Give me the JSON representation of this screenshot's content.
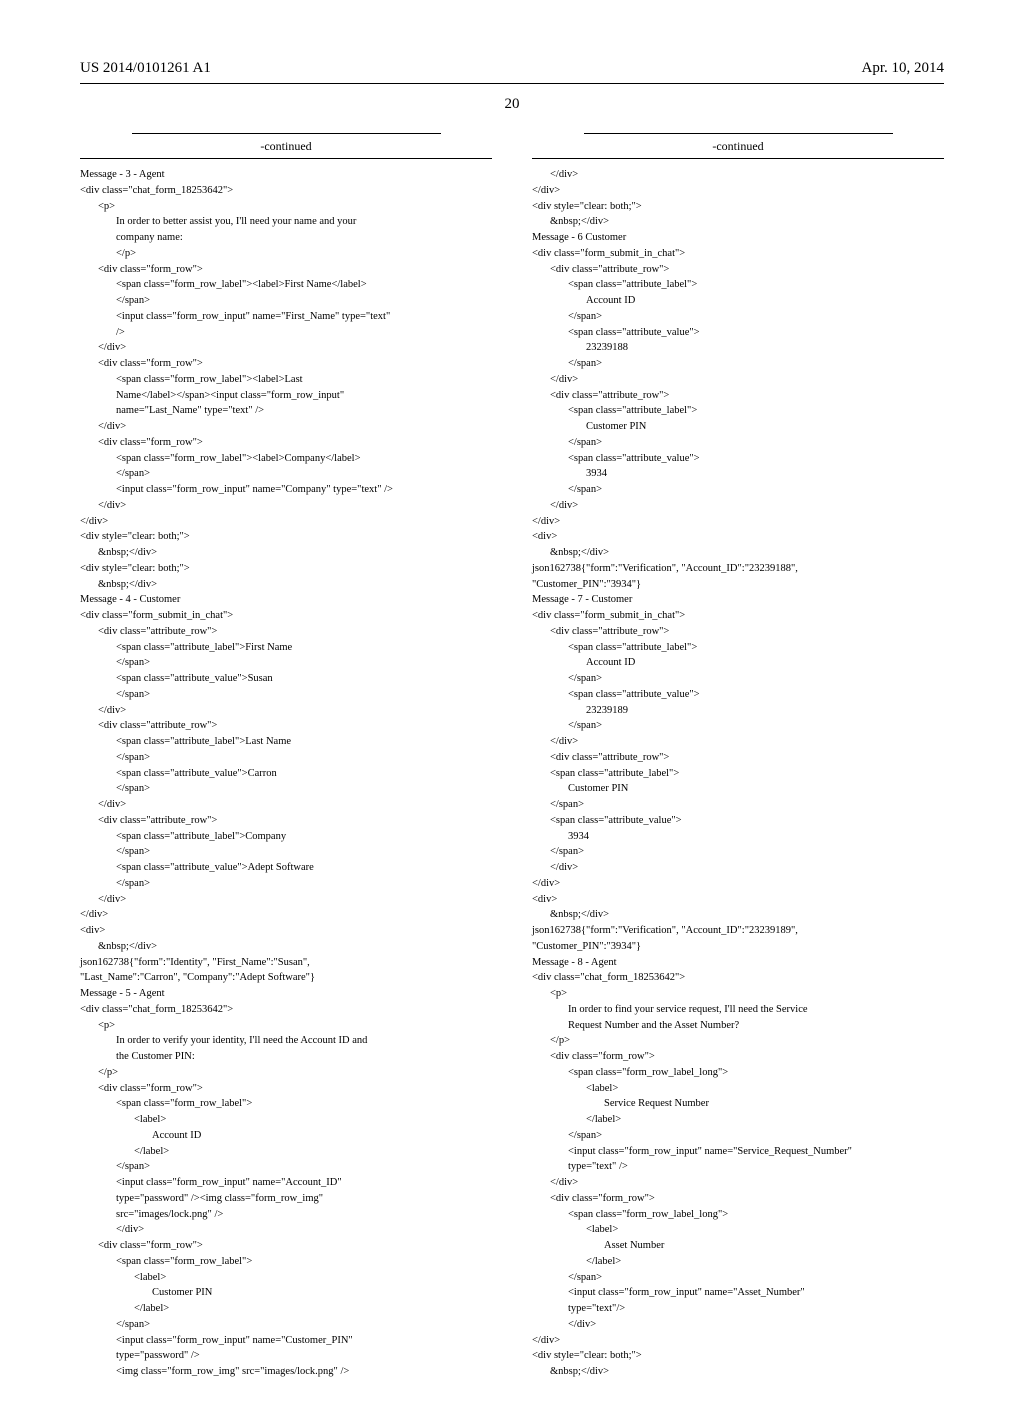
{
  "header": {
    "pub_number": "US 2014/0101261 A1",
    "pub_date": "Apr. 10, 2014"
  },
  "page_number": "20",
  "continued_label": "-continued",
  "left": {
    "lines": [
      {
        "i": 0,
        "t": "Message - 3 - Agent"
      },
      {
        "i": 0,
        "t": "<div class=\"chat_form_18253642\">"
      },
      {
        "i": 1,
        "t": "<p>"
      },
      {
        "i": 2,
        "t": "In order to better assist you, I'll need your name and your"
      },
      {
        "i": 2,
        "t": "company name:"
      },
      {
        "i": 2,
        "t": "</p>"
      },
      {
        "i": 1,
        "t": "<div class=\"form_row\">"
      },
      {
        "i": 2,
        "t": "<span class=\"form_row_label\"><label>First Name</label>"
      },
      {
        "i": 2,
        "t": "</span>"
      },
      {
        "i": 2,
        "t": "<input class=\"form_row_input\" name=\"First_Name\" type=\"text\""
      },
      {
        "i": 2,
        "t": "/>"
      },
      {
        "i": 1,
        "t": "</div>"
      },
      {
        "i": 1,
        "t": "<div class=\"form_row\">"
      },
      {
        "i": 2,
        "t": "<span class=\"form_row_label\"><label>Last"
      },
      {
        "i": 2,
        "t": "Name</label></span><input class=\"form_row_input\""
      },
      {
        "i": 2,
        "t": "name=\"Last_Name\" type=\"text\" />"
      },
      {
        "i": 1,
        "t": "</div>"
      },
      {
        "i": 1,
        "t": "<div class=\"form_row\">"
      },
      {
        "i": 2,
        "t": "<span class=\"form_row_label\"><label>Company</label>"
      },
      {
        "i": 2,
        "t": "</span>"
      },
      {
        "i": 2,
        "t": "<input class=\"form_row_input\" name=\"Company\" type=\"text\" />"
      },
      {
        "i": 1,
        "t": "</div>"
      },
      {
        "i": 0,
        "t": "</div>"
      },
      {
        "i": 0,
        "t": "<div style=\"clear: both;\">"
      },
      {
        "i": 1,
        "t": "&nbsp;</div>"
      },
      {
        "i": 0,
        "t": "<div style=\"clear: both;\">"
      },
      {
        "i": 1,
        "t": "&nbsp;</div>"
      },
      {
        "i": 0,
        "t": "Message - 4 - Customer"
      },
      {
        "i": 0,
        "t": "<div class=\"form_submit_in_chat\">"
      },
      {
        "i": 1,
        "t": "<div class=\"attribute_row\">"
      },
      {
        "i": 2,
        "t": "<span class=\"attribute_label\">First Name"
      },
      {
        "i": 2,
        "t": "</span>"
      },
      {
        "i": 2,
        "t": "<span class=\"attribute_value\">Susan"
      },
      {
        "i": 2,
        "t": "</span>"
      },
      {
        "i": 1,
        "t": "</div>"
      },
      {
        "i": 1,
        "t": "<div class=\"attribute_row\">"
      },
      {
        "i": 2,
        "t": "<span class=\"attribute_label\">Last Name"
      },
      {
        "i": 2,
        "t": "</span>"
      },
      {
        "i": 2,
        "t": "<span class=\"attribute_value\">Carron"
      },
      {
        "i": 2,
        "t": "</span>"
      },
      {
        "i": 1,
        "t": "</div>"
      },
      {
        "i": 1,
        "t": "<div class=\"attribute_row\">"
      },
      {
        "i": 2,
        "t": "<span class=\"attribute_label\">Company"
      },
      {
        "i": 2,
        "t": "</span>"
      },
      {
        "i": 2,
        "t": "<span class=\"attribute_value\">Adept Software"
      },
      {
        "i": 2,
        "t": "</span>"
      },
      {
        "i": 1,
        "t": "</div>"
      },
      {
        "i": 0,
        "t": "</div>"
      },
      {
        "i": 0,
        "t": "<div>"
      },
      {
        "i": 1,
        "t": "&nbsp;</div>"
      },
      {
        "i": 0,
        "t": "json162738{\"form\":\"Identity\", \"First_Name\":\"Susan\","
      },
      {
        "i": 0,
        "t": "\"Last_Name\":\"Carron\", \"Company\":\"Adept Software\"}"
      },
      {
        "i": 0,
        "t": "Message - 5 - Agent"
      },
      {
        "i": 0,
        "t": "<div class=\"chat_form_18253642\">"
      },
      {
        "i": 1,
        "t": "<p>"
      },
      {
        "i": 2,
        "t": "In order to verify your identity, I'll need the Account ID and"
      },
      {
        "i": 2,
        "t": "the Customer PIN:"
      },
      {
        "i": 1,
        "t": "</p>"
      },
      {
        "i": 1,
        "t": "<div class=\"form_row\">"
      },
      {
        "i": 2,
        "t": "<span class=\"form_row_label\">"
      },
      {
        "i": 3,
        "t": "<label>"
      },
      {
        "i": 4,
        "t": "Account ID"
      },
      {
        "i": 3,
        "t": "</label>"
      },
      {
        "i": 2,
        "t": "</span>"
      },
      {
        "i": 2,
        "t": "<input class=\"form_row_input\" name=\"Account_ID\""
      },
      {
        "i": 2,
        "t": "type=\"password\" /><img class=\"form_row_img\""
      },
      {
        "i": 2,
        "t": "src=\"images/lock.png\" />"
      },
      {
        "i": 2,
        "t": "</div>"
      },
      {
        "i": 1,
        "t": "<div class=\"form_row\">"
      },
      {
        "i": 2,
        "t": "<span class=\"form_row_label\">"
      },
      {
        "i": 3,
        "t": "<label>"
      },
      {
        "i": 4,
        "t": "Customer PIN"
      },
      {
        "i": 3,
        "t": "</label>"
      },
      {
        "i": 2,
        "t": "</span>"
      },
      {
        "i": 2,
        "t": "<input class=\"form_row_input\" name=\"Customer_PIN\""
      },
      {
        "i": 2,
        "t": "type=\"password\" />"
      },
      {
        "i": 2,
        "t": "<img class=\"form_row_img\" src=\"images/lock.png\" />"
      }
    ]
  },
  "right": {
    "lines": [
      {
        "i": 1,
        "t": "</div>"
      },
      {
        "i": 0,
        "t": "</div>"
      },
      {
        "i": 0,
        "t": "<div style=\"clear: both;\">"
      },
      {
        "i": 1,
        "t": "&nbsp;</div>"
      },
      {
        "i": 0,
        "t": "Message - 6 Customer"
      },
      {
        "i": 0,
        "t": "<div class=\"form_submit_in_chat\">"
      },
      {
        "i": 1,
        "t": "<div class=\"attribute_row\">"
      },
      {
        "i": 2,
        "t": "<span class=\"attribute_label\">"
      },
      {
        "i": 3,
        "t": "Account ID"
      },
      {
        "i": 2,
        "t": "</span>"
      },
      {
        "i": 2,
        "t": "<span class=\"attribute_value\">"
      },
      {
        "i": 3,
        "t": "23239188"
      },
      {
        "i": 2,
        "t": "</span>"
      },
      {
        "i": 1,
        "t": "</div>"
      },
      {
        "i": 1,
        "t": "<div class=\"attribute_row\">"
      },
      {
        "i": 2,
        "t": "<span class=\"attribute_label\">"
      },
      {
        "i": 3,
        "t": "Customer PIN"
      },
      {
        "i": 2,
        "t": "</span>"
      },
      {
        "i": 2,
        "t": "<span class=\"attribute_value\">"
      },
      {
        "i": 3,
        "t": "3934"
      },
      {
        "i": 2,
        "t": "</span>"
      },
      {
        "i": 1,
        "t": "</div>"
      },
      {
        "i": 0,
        "t": "</div>"
      },
      {
        "i": 0,
        "t": "<div>"
      },
      {
        "i": 1,
        "t": "&nbsp;</div>"
      },
      {
        "i": 0,
        "t": "json162738{\"form\":\"Verification\", \"Account_ID\":\"23239188\","
      },
      {
        "i": 0,
        "t": "\"Customer_PIN\":\"3934\"}"
      },
      {
        "i": 0,
        "t": "Message - 7 - Customer"
      },
      {
        "i": 0,
        "t": "<div class=\"form_submit_in_chat\">"
      },
      {
        "i": 1,
        "t": "<div class=\"attribute_row\">"
      },
      {
        "i": 2,
        "t": "<span class=\"attribute_label\">"
      },
      {
        "i": 3,
        "t": "Account ID"
      },
      {
        "i": 2,
        "t": "</span>"
      },
      {
        "i": 2,
        "t": "<span class=\"attribute_value\">"
      },
      {
        "i": 3,
        "t": "23239189"
      },
      {
        "i": 2,
        "t": "</span>"
      },
      {
        "i": 1,
        "t": "</div>"
      },
      {
        "i": 1,
        "t": "<div class=\"attribute_row\">"
      },
      {
        "i": 1,
        "t": "<span class=\"attribute_label\">"
      },
      {
        "i": 2,
        "t": "Customer PIN"
      },
      {
        "i": 1,
        "t": "</span>"
      },
      {
        "i": 1,
        "t": "<span class=\"attribute_value\">"
      },
      {
        "i": 2,
        "t": "3934"
      },
      {
        "i": 1,
        "t": "</span>"
      },
      {
        "i": 1,
        "t": "</div>"
      },
      {
        "i": 0,
        "t": "</div>"
      },
      {
        "i": 0,
        "t": "<div>"
      },
      {
        "i": 1,
        "t": "&nbsp;</div>"
      },
      {
        "i": 0,
        "t": "json162738{\"form\":\"Verification\", \"Account_ID\":\"23239189\","
      },
      {
        "i": 0,
        "t": "\"Customer_PIN\":\"3934\"}"
      },
      {
        "i": 0,
        "t": "Message - 8 - Agent"
      },
      {
        "i": 0,
        "t": "<div class=\"chat_form_18253642\">"
      },
      {
        "i": 1,
        "t": "<p>"
      },
      {
        "i": 2,
        "t": "In order to find your service request, I'll need the Service"
      },
      {
        "i": 2,
        "t": "Request Number and the Asset Number?"
      },
      {
        "i": 1,
        "t": "</p>"
      },
      {
        "i": 1,
        "t": "<div class=\"form_row\">"
      },
      {
        "i": 2,
        "t": "<span class=\"form_row_label_long\">"
      },
      {
        "i": 3,
        "t": "<label>"
      },
      {
        "i": 4,
        "t": "Service Request Number"
      },
      {
        "i": 3,
        "t": "</label>"
      },
      {
        "i": 2,
        "t": "</span>"
      },
      {
        "i": 2,
        "t": "<input class=\"form_row_input\" name=\"Service_Request_Number\""
      },
      {
        "i": 2,
        "t": "type=\"text\" />"
      },
      {
        "i": 1,
        "t": "</div>"
      },
      {
        "i": 1,
        "t": "<div class=\"form_row\">"
      },
      {
        "i": 2,
        "t": "<span class=\"form_row_label_long\">"
      },
      {
        "i": 3,
        "t": "<label>"
      },
      {
        "i": 4,
        "t": "Asset Number"
      },
      {
        "i": 3,
        "t": "</label>"
      },
      {
        "i": 2,
        "t": "</span>"
      },
      {
        "i": 2,
        "t": "<input class=\"form_row_input\" name=\"Asset_Number\""
      },
      {
        "i": 2,
        "t": "type=\"text\"/>"
      },
      {
        "i": 2,
        "t": "</div>"
      },
      {
        "i": 0,
        "t": "</div>"
      },
      {
        "i": 0,
        "t": "<div style=\"clear: both;\">"
      },
      {
        "i": 1,
        "t": "&nbsp;</div>"
      }
    ]
  }
}
